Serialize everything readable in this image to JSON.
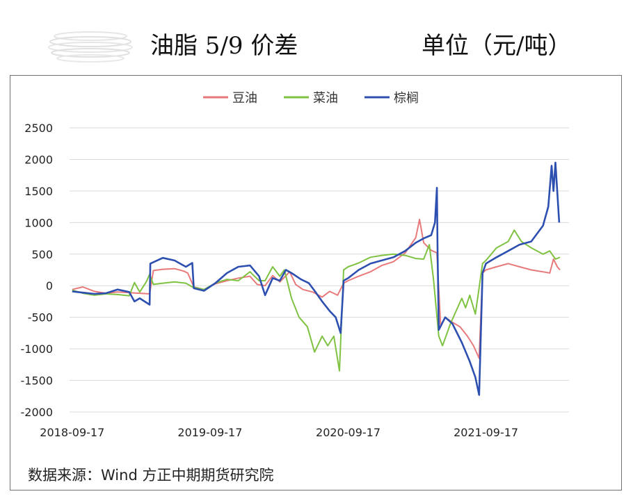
{
  "header": {
    "title": "油脂 5/9 价差",
    "unit": "单位（元/吨）"
  },
  "source": "数据来源：Wind  方正中期期货研究院",
  "chart_data": {
    "type": "line",
    "title": "油脂 5/9 价差",
    "ylabel": "",
    "xlabel": "",
    "ylim": [
      -2000,
      2500
    ],
    "yticks": [
      2500,
      2000,
      1500,
      1000,
      500,
      0,
      -500,
      -1000,
      -1500,
      -2000
    ],
    "xrange": [
      "2018-09-10",
      "2022-04-25"
    ],
    "xticks": [
      "2018-09-17",
      "2019-09-17",
      "2020-09-17",
      "2021-09-17"
    ],
    "grid": "horizontal",
    "legend": "top-center",
    "series": [
      {
        "name": "豆油",
        "color": "#e8797a",
        "points": [
          [
            "2018-09-17",
            -60
          ],
          [
            "2018-10-15",
            -20
          ],
          [
            "2018-11-15",
            -90
          ],
          [
            "2018-12-15",
            -120
          ],
          [
            "2019-01-15",
            -100
          ],
          [
            "2019-02-15",
            -110
          ],
          [
            "2019-03-15",
            -120
          ],
          [
            "2019-04-10",
            -130
          ],
          [
            "2019-04-20",
            240
          ],
          [
            "2019-05-15",
            260
          ],
          [
            "2019-06-15",
            270
          ],
          [
            "2019-07-10",
            230
          ],
          [
            "2019-07-20",
            200
          ],
          [
            "2019-08-05",
            -20
          ],
          [
            "2019-09-01",
            -60
          ],
          [
            "2019-10-01",
            30
          ],
          [
            "2019-11-01",
            80
          ],
          [
            "2019-12-01",
            120
          ],
          [
            "2020-01-01",
            150
          ],
          [
            "2020-01-20",
            20
          ],
          [
            "2020-02-10",
            0
          ],
          [
            "2020-03-01",
            160
          ],
          [
            "2020-03-20",
            60
          ],
          [
            "2020-04-15",
            220
          ],
          [
            "2020-05-01",
            20
          ],
          [
            "2020-05-20",
            -60
          ],
          [
            "2020-06-15",
            -100
          ],
          [
            "2020-07-10",
            -180
          ],
          [
            "2020-07-30",
            -90
          ],
          [
            "2020-08-20",
            -150
          ],
          [
            "2020-09-05",
            40
          ],
          [
            "2020-09-17",
            80
          ],
          [
            "2020-10-15",
            150
          ],
          [
            "2020-11-15",
            220
          ],
          [
            "2020-12-15",
            320
          ],
          [
            "2021-01-15",
            380
          ],
          [
            "2021-02-15",
            520
          ],
          [
            "2021-03-15",
            760
          ],
          [
            "2021-03-25",
            1050
          ],
          [
            "2021-04-05",
            680
          ],
          [
            "2021-04-25",
            560
          ],
          [
            "2021-05-10",
            520
          ],
          [
            "2021-05-20",
            -650
          ],
          [
            "2021-06-01",
            -500
          ],
          [
            "2021-06-20",
            -580
          ],
          [
            "2021-07-10",
            -650
          ],
          [
            "2021-07-30",
            -800
          ],
          [
            "2021-08-15",
            -950
          ],
          [
            "2021-08-30",
            -1150
          ],
          [
            "2021-09-08",
            200
          ],
          [
            "2021-09-17",
            250
          ],
          [
            "2021-10-15",
            300
          ],
          [
            "2021-11-15",
            350
          ],
          [
            "2021-12-15",
            300
          ],
          [
            "2022-01-15",
            250
          ],
          [
            "2022-02-15",
            220
          ],
          [
            "2022-03-05",
            200
          ],
          [
            "2022-03-15",
            420
          ],
          [
            "2022-03-25",
            300
          ],
          [
            "2022-04-01",
            250
          ]
        ]
      },
      {
        "name": "菜油",
        "color": "#7fc241",
        "points": [
          [
            "2018-09-17",
            -70
          ],
          [
            "2018-10-15",
            -120
          ],
          [
            "2018-11-15",
            -150
          ],
          [
            "2018-12-15",
            -130
          ],
          [
            "2019-01-15",
            -140
          ],
          [
            "2019-02-15",
            -160
          ],
          [
            "2019-03-01",
            50
          ],
          [
            "2019-03-15",
            -100
          ],
          [
            "2019-04-01",
            60
          ],
          [
            "2019-04-10",
            180
          ],
          [
            "2019-04-20",
            20
          ],
          [
            "2019-05-15",
            40
          ],
          [
            "2019-06-15",
            60
          ],
          [
            "2019-07-15",
            40
          ],
          [
            "2019-08-01",
            -20
          ],
          [
            "2019-09-01",
            -60
          ],
          [
            "2019-10-01",
            40
          ],
          [
            "2019-11-01",
            100
          ],
          [
            "2019-12-01",
            80
          ],
          [
            "2020-01-01",
            220
          ],
          [
            "2020-01-25",
            80
          ],
          [
            "2020-02-10",
            80
          ],
          [
            "2020-03-01",
            300
          ],
          [
            "2020-03-20",
            150
          ],
          [
            "2020-04-01",
            250
          ],
          [
            "2020-04-20",
            -200
          ],
          [
            "2020-05-10",
            -500
          ],
          [
            "2020-06-01",
            -650
          ],
          [
            "2020-06-20",
            -1050
          ],
          [
            "2020-07-10",
            -800
          ],
          [
            "2020-07-25",
            -950
          ],
          [
            "2020-08-10",
            -800
          ],
          [
            "2020-08-25",
            -1350
          ],
          [
            "2020-09-05",
            250
          ],
          [
            "2020-09-17",
            300
          ],
          [
            "2020-10-15",
            360
          ],
          [
            "2020-11-15",
            450
          ],
          [
            "2020-12-15",
            480
          ],
          [
            "2021-01-15",
            500
          ],
          [
            "2021-02-15",
            480
          ],
          [
            "2021-03-15",
            430
          ],
          [
            "2021-04-05",
            420
          ],
          [
            "2021-04-20",
            650
          ],
          [
            "2021-05-01",
            100
          ],
          [
            "2021-05-15",
            -800
          ],
          [
            "2021-05-25",
            -950
          ],
          [
            "2021-06-15",
            -600
          ],
          [
            "2021-06-30",
            -400
          ],
          [
            "2021-07-15",
            -200
          ],
          [
            "2021-07-25",
            -350
          ],
          [
            "2021-08-05",
            -150
          ],
          [
            "2021-08-20",
            -450
          ],
          [
            "2021-09-08",
            350
          ],
          [
            "2021-09-17",
            400
          ],
          [
            "2021-10-15",
            600
          ],
          [
            "2021-11-15",
            700
          ],
          [
            "2021-12-01",
            880
          ],
          [
            "2021-12-20",
            700
          ],
          [
            "2022-01-15",
            600
          ],
          [
            "2022-02-15",
            500
          ],
          [
            "2022-03-05",
            550
          ],
          [
            "2022-03-20",
            420
          ],
          [
            "2022-04-01",
            450
          ]
        ]
      },
      {
        "name": "棕榈",
        "color": "#2d4fb0",
        "points": [
          [
            "2018-09-17",
            -90
          ],
          [
            "2018-10-15",
            -110
          ],
          [
            "2018-11-15",
            -130
          ],
          [
            "2018-12-15",
            -120
          ],
          [
            "2019-01-15",
            -60
          ],
          [
            "2019-02-15",
            -100
          ],
          [
            "2019-03-01",
            -250
          ],
          [
            "2019-03-15",
            -200
          ],
          [
            "2019-04-10",
            -300
          ],
          [
            "2019-04-12",
            350
          ],
          [
            "2019-05-15",
            440
          ],
          [
            "2019-06-15",
            400
          ],
          [
            "2019-07-15",
            300
          ],
          [
            "2019-08-01",
            360
          ],
          [
            "2019-08-05",
            -40
          ],
          [
            "2019-09-01",
            -80
          ],
          [
            "2019-10-01",
            40
          ],
          [
            "2019-11-01",
            200
          ],
          [
            "2019-12-01",
            300
          ],
          [
            "2020-01-01",
            320
          ],
          [
            "2020-01-25",
            150
          ],
          [
            "2020-02-10",
            -150
          ],
          [
            "2020-03-01",
            120
          ],
          [
            "2020-03-20",
            80
          ],
          [
            "2020-04-05",
            250
          ],
          [
            "2020-04-20",
            200
          ],
          [
            "2020-05-15",
            100
          ],
          [
            "2020-06-05",
            40
          ],
          [
            "2020-06-20",
            -80
          ],
          [
            "2020-07-10",
            -250
          ],
          [
            "2020-07-30",
            -400
          ],
          [
            "2020-08-15",
            -500
          ],
          [
            "2020-08-28",
            -750
          ],
          [
            "2020-09-05",
            80
          ],
          [
            "2020-09-17",
            120
          ],
          [
            "2020-10-15",
            250
          ],
          [
            "2020-11-15",
            350
          ],
          [
            "2020-12-15",
            400
          ],
          [
            "2021-01-15",
            450
          ],
          [
            "2021-02-15",
            550
          ],
          [
            "2021-03-15",
            680
          ],
          [
            "2021-04-05",
            750
          ],
          [
            "2021-04-25",
            800
          ],
          [
            "2021-05-05",
            1000
          ],
          [
            "2021-05-10",
            1550
          ],
          [
            "2021-05-12",
            500
          ],
          [
            "2021-05-15",
            -700
          ],
          [
            "2021-06-01",
            -500
          ],
          [
            "2021-06-20",
            -600
          ],
          [
            "2021-07-15",
            -900
          ],
          [
            "2021-08-05",
            -1200
          ],
          [
            "2021-08-20",
            -1450
          ],
          [
            "2021-08-30",
            -1730
          ],
          [
            "2021-09-08",
            200
          ],
          [
            "2021-09-17",
            350
          ],
          [
            "2021-10-15",
            450
          ],
          [
            "2021-11-15",
            550
          ],
          [
            "2021-12-15",
            650
          ],
          [
            "2022-01-15",
            700
          ],
          [
            "2022-02-15",
            950
          ],
          [
            "2022-03-01",
            1250
          ],
          [
            "2022-03-10",
            1900
          ],
          [
            "2022-03-15",
            1500
          ],
          [
            "2022-03-20",
            1950
          ],
          [
            "2022-03-30",
            1000
          ]
        ]
      }
    ]
  }
}
